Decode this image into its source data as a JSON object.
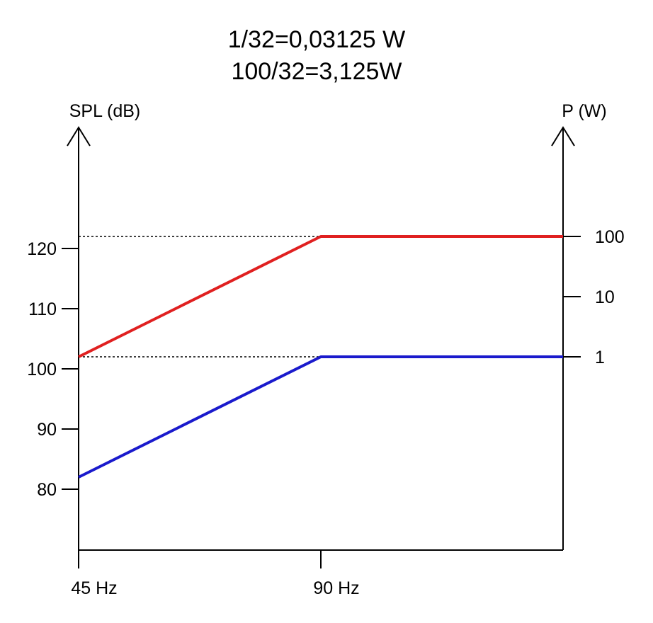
{
  "title": [
    "1/32=0,03125 W",
    "100/32=3,125W"
  ],
  "chart_data": {
    "type": "line",
    "y_left_label": "SPL (dB)",
    "y_right_label": "P (W)",
    "x_ticks": [
      {
        "value": 45,
        "label": "45 Hz"
      },
      {
        "value": 90,
        "label": "90 Hz"
      }
    ],
    "y_left_ticks": [
      80,
      90,
      100,
      110,
      120
    ],
    "y_right_ticks": [
      {
        "spl": 102,
        "label": "1"
      },
      {
        "spl": 112,
        "label": "10"
      },
      {
        "spl": 122,
        "label": "100"
      }
    ],
    "series": [
      {
        "color": "#e02020",
        "points": [
          [
            45,
            102
          ],
          [
            90,
            122
          ],
          [
            135,
            122
          ]
        ]
      },
      {
        "color": "#1a1acc",
        "points": [
          [
            45,
            82
          ],
          [
            90,
            102
          ],
          [
            135,
            102
          ]
        ]
      }
    ],
    "reference_lines_spl": [
      122,
      102
    ],
    "grid": false
  }
}
